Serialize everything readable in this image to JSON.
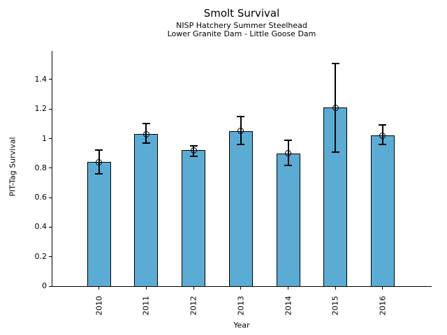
{
  "chart_data": {
    "type": "bar",
    "title": "Smolt Survival",
    "subtitles": [
      "NISP Hatchery Summer Steelhead",
      "Lower Granite Dam - Little Goose Dam"
    ],
    "xlabel": "Year",
    "ylabel": "PIT-Tag Survival",
    "categories": [
      "2010",
      "2011",
      "2012",
      "2013",
      "2014",
      "2015",
      "2016"
    ],
    "values": [
      0.84,
      1.03,
      0.92,
      1.05,
      0.9,
      1.21,
      1.02
    ],
    "error_upper": [
      0.92,
      1.1,
      0.95,
      1.15,
      0.99,
      1.51,
      1.09
    ],
    "error_lower": [
      0.76,
      0.97,
      0.88,
      0.96,
      0.82,
      0.91,
      0.96
    ],
    "ylim": [
      0,
      1.59
    ],
    "yticks": {
      "values": [
        0,
        0.2,
        0.4,
        0.6,
        0.8,
        1.0,
        1.2,
        1.4
      ],
      "labels": [
        "0",
        "0.2",
        "0.4",
        "0.6",
        "0.8",
        "1",
        "1.2",
        "1.4"
      ]
    },
    "grid": false,
    "legend": "none",
    "bar_color": "#5AACD5",
    "bar_edge_color": "#000000",
    "error_color": "#000000",
    "marker": "open-circle"
  }
}
